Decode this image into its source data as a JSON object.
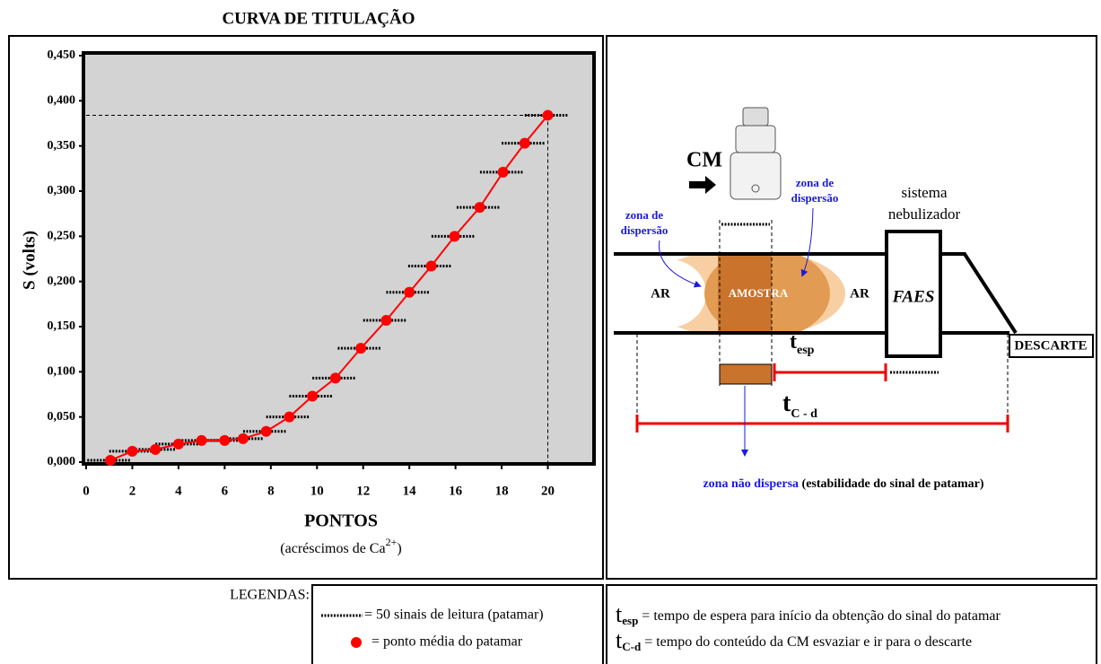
{
  "chart_data": {
    "type": "line",
    "title": "CURVA DE TITULAÇÃO",
    "xlabel": "PONTOS",
    "xlabel_note": [
      "(acréscimos de Ca",
      "2+",
      ")"
    ],
    "ylabel": "S (volts)",
    "x": [
      1.05,
      2.0,
      3.0,
      4.0,
      5.0,
      6.0,
      6.8,
      7.8,
      8.8,
      9.8,
      10.8,
      11.9,
      13.0,
      14.0,
      14.95,
      15.96,
      17.05,
      18.06,
      19.0,
      20.0
    ],
    "series": [
      {
        "name": "= ponto média do patamar",
        "color": "#ff0000",
        "values": [
          0.002,
          0.012,
          0.014,
          0.02,
          0.024,
          0.024,
          0.026,
          0.034,
          0.05,
          0.073,
          0.093,
          0.126,
          0.157,
          0.188,
          0.217,
          0.25,
          0.282,
          0.321,
          0.353,
          0.384
        ]
      }
    ],
    "xlim": [
      0,
      22
    ],
    "ylim": [
      0,
      0.45
    ],
    "xticks": [
      0,
      2,
      4,
      6,
      8,
      10,
      12,
      14,
      16,
      18,
      20
    ],
    "yticks": [
      {
        "value": 0,
        "label": "0,000"
      },
      {
        "value": 0.05,
        "label": "0,050"
      },
      {
        "value": 0.1,
        "label": "0,100"
      },
      {
        "value": 0.15,
        "label": "0,150"
      },
      {
        "value": 0.2,
        "label": "0,200"
      },
      {
        "value": 0.25,
        "label": "0,250"
      },
      {
        "value": 0.3,
        "label": "0,300"
      },
      {
        "value": 0.35,
        "label": "0,350"
      },
      {
        "value": 0.4,
        "label": "0,400"
      },
      {
        "value": 0.45,
        "label": "0,450"
      }
    ],
    "background": "#d3d3d3"
  },
  "diagram": {
    "cm": "CM",
    "zona_left": [
      "zona de",
      "dispersão"
    ],
    "zona_right": [
      "zona de",
      "dispersão"
    ],
    "nebulizador": [
      "sistema",
      "nebulizador"
    ],
    "ar_left": "AR",
    "amostra": "AMOSTRA",
    "ar_right": "AR",
    "faes": "FAES",
    "descarte": "DESCARTE",
    "t_esp": {
      "t": "t",
      "sub": "esp"
    },
    "t_cd": {
      "t": "t",
      "sub": "C - d"
    },
    "nao_dispersa": "zona não dispersa",
    "estabilidade": "(estabilidade do sinal de patamar)"
  },
  "legend": {
    "title": "LEGENDAS:",
    "patamar": "= 50 sinais de leitura (patamar)",
    "t_esp": {
      "t": "t",
      "sub": "esp",
      "text": "= tempo de espera para início da obtenção do sinal do patamar"
    },
    "t_cd": {
      "t": "t",
      "sub": "C-d",
      "text": "= tempo do conteúdo da CM esvaziar e ir para o descarte"
    }
  }
}
